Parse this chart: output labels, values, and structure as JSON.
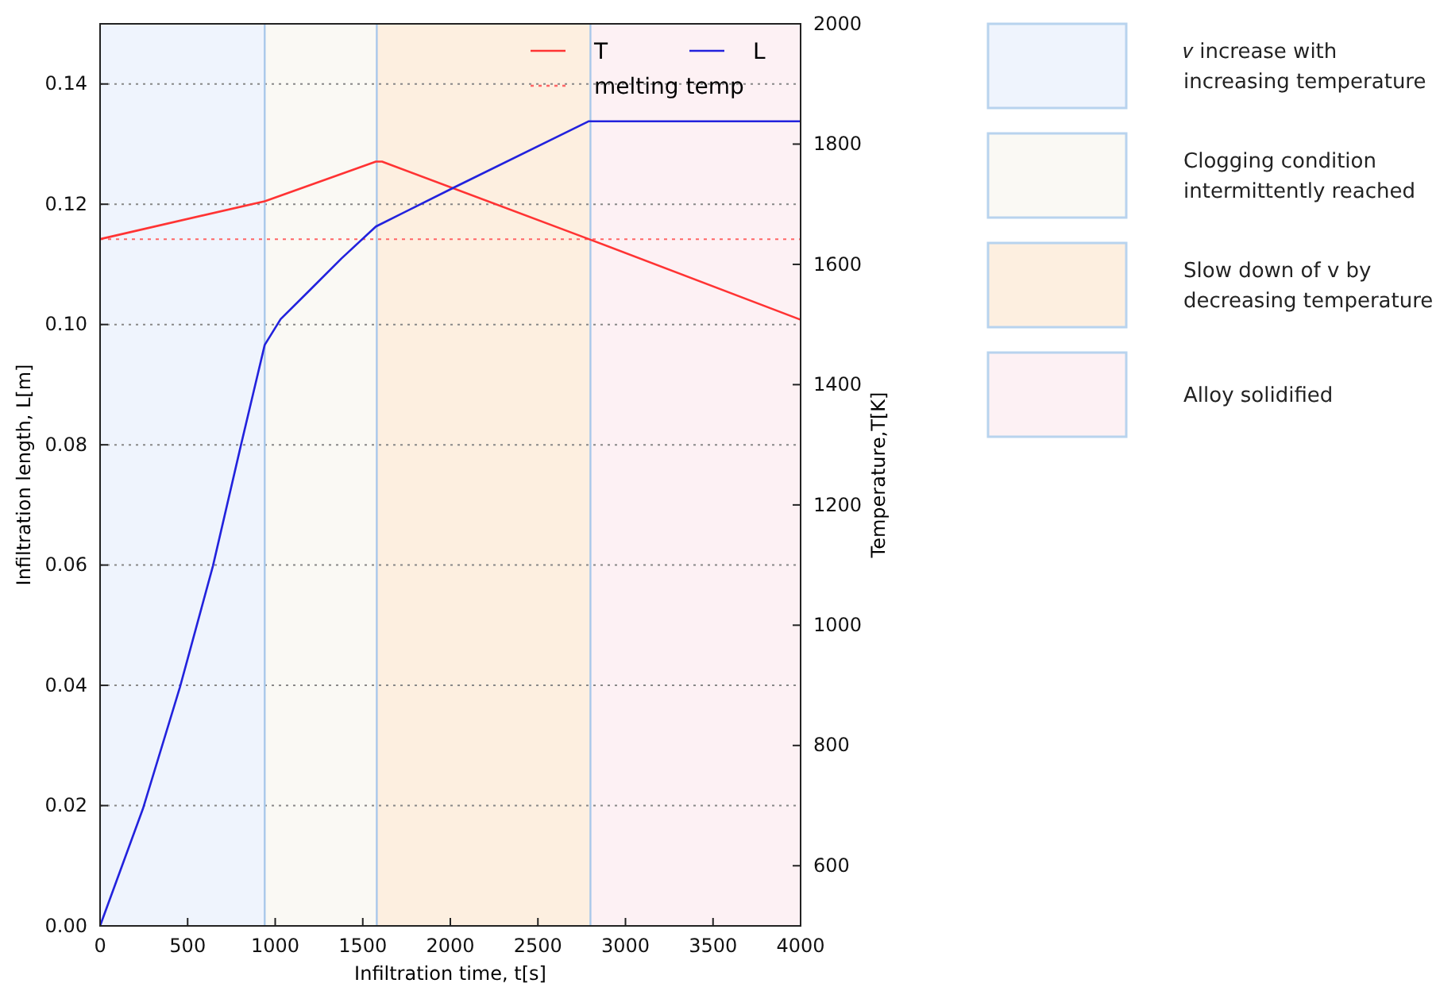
{
  "chart_data": {
    "type": "line",
    "xlabel": "Infiltration time, t[s]",
    "ylabel": "Infiltration length, L[m]",
    "y2label": "Temperature,T[K]",
    "xlim": [
      0,
      4000
    ],
    "xticks": [
      0,
      500,
      1000,
      1500,
      2000,
      2500,
      3000,
      3500,
      4000
    ],
    "ylim": [
      0,
      0.15
    ],
    "yticks": [
      {
        "value": 0,
        "label": "0.00"
      },
      0.02,
      0.04,
      0.06,
      0.08,
      {
        "value": 0.1,
        "label": "0.10"
      },
      0.12,
      0.14
    ],
    "y2lim": [
      500,
      2000
    ],
    "y2ticks": [
      600,
      800,
      1000,
      1200,
      1400,
      1600,
      1800,
      2000
    ],
    "grid": "y",
    "legend": "top right",
    "series": [
      {
        "name": "T",
        "color": "#ff3333",
        "axis": "y2",
        "x": [
          0,
          940,
          1575,
          1610,
          2791,
          4000
        ],
        "values": [
          1642,
          1705,
          1771,
          1771,
          1642,
          1508
        ]
      },
      {
        "name": "L",
        "color": "#2222dd",
        "axis": "y",
        "x": [
          0,
          245,
          456,
          644,
          804,
          940,
          1031,
          1197,
          1379,
          1575,
          2029,
          2791,
          4000
        ],
        "values": [
          0,
          0.0195,
          0.0397,
          0.0598,
          0.0799,
          0.0966,
          0.1009,
          0.1057,
          0.111,
          0.1163,
          0.1229,
          0.1338,
          0.1338
        ]
      }
    ],
    "ref_lines": [
      {
        "axis": "y2",
        "value": 1642,
        "label": "melting temp",
        "color": "#ff6666",
        "line_style": "dotted"
      },
      {
        "axis": "x",
        "value": 940,
        "color": "#a9c8ea",
        "line_style": "solid"
      },
      {
        "axis": "x",
        "value": 1580,
        "color": "#a9c8ea",
        "line_style": "solid"
      },
      {
        "axis": "x",
        "value": 2800,
        "color": "#a9c8ea",
        "line_style": "solid"
      }
    ],
    "bands": [
      {
        "axis": "x",
        "from": 0,
        "to": 940,
        "color": "#eff4fd"
      },
      {
        "axis": "x",
        "from": 940,
        "to": 1580,
        "color": "#faf9f4"
      },
      {
        "axis": "x",
        "from": 1580,
        "to": 2800,
        "color": "#fdefe0"
      },
      {
        "axis": "x",
        "from": 2800,
        "to": 4000,
        "color": "#fdf1f4"
      }
    ],
    "annotations": [
      "𝑣 increase with increasing temperature",
      "Clogging condition intermittently reached",
      "Slow down of v by decreasing temperature",
      "Alloy solidified"
    ]
  }
}
